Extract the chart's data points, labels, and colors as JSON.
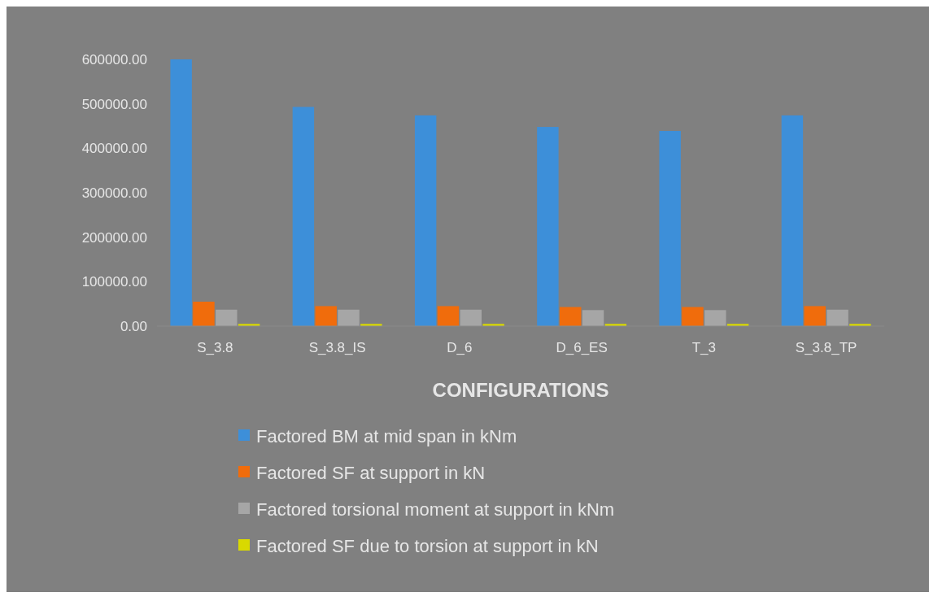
{
  "chart_data": {
    "type": "bar",
    "xlabel": "CONFIGURATIONS",
    "categories": [
      "S_3.8",
      "S_3.8_IS",
      "D_6",
      "D_6_ES",
      "T_3",
      "S_3.8_TP"
    ],
    "series": [
      {
        "name": "Factored BM at mid span in kNm",
        "color": "#3d8fd9",
        "values": [
          600000,
          493000,
          474000,
          448000,
          439000,
          474000
        ]
      },
      {
        "name": "Factored SF at support in kN",
        "color": "#f06c0c",
        "values": [
          55000,
          45000,
          45000,
          43000,
          43000,
          45000
        ]
      },
      {
        "name": "Factored torsional moment at support in kNm",
        "color": "#a6a6a6",
        "values": [
          37000,
          37000,
          37000,
          36000,
          36000,
          37000
        ]
      },
      {
        "name": "Factored SF due to torsion at support in kN",
        "color": "#d9d900",
        "values": [
          5000,
          5000,
          5000,
          5000,
          5000,
          5000
        ]
      }
    ],
    "ylim": [
      0,
      600000
    ],
    "yticks": [
      {
        "value": 0,
        "label": "0.00"
      },
      {
        "value": 100000,
        "label": "100000.00"
      },
      {
        "value": 200000,
        "label": "200000.00"
      },
      {
        "value": 300000,
        "label": "300000.00"
      },
      {
        "value": 400000,
        "label": "400000.00"
      },
      {
        "value": 500000,
        "label": "500000.00"
      },
      {
        "value": 600000,
        "label": "600000.00"
      }
    ],
    "legend": "bottom"
  }
}
